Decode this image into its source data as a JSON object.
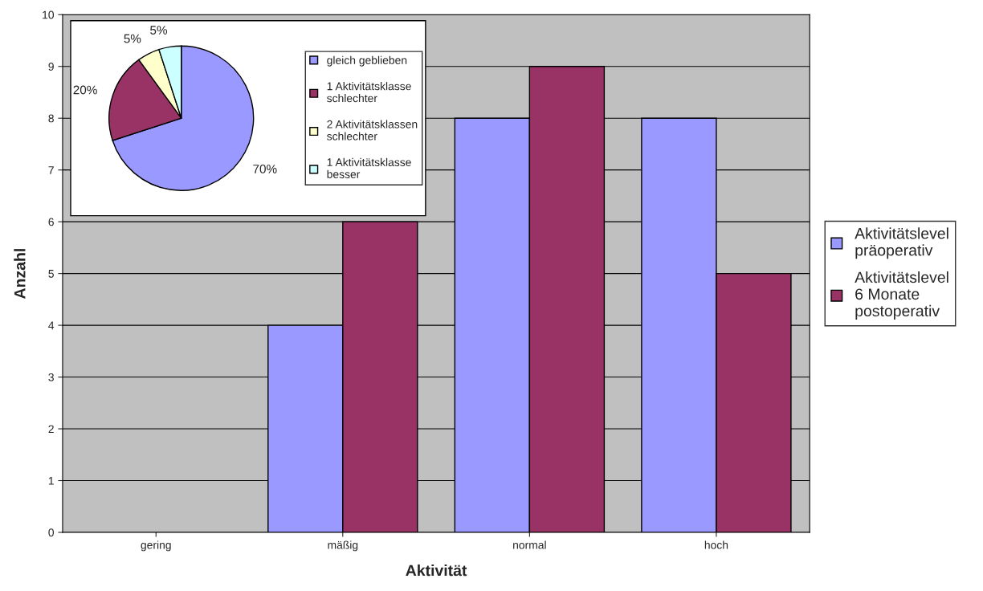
{
  "chart_data": [
    {
      "type": "bar",
      "xlabel": "Aktivität",
      "ylabel": "Anzahl",
      "categories": [
        "gering",
        "mäßig",
        "normal",
        "hoch"
      ],
      "series": [
        {
          "name": "Aktivitätslevel präoperativ",
          "color": "#9999ff",
          "values": [
            0,
            4,
            8,
            8
          ]
        },
        {
          "name": "Aktivitätslevel 6 Monate postoperativ",
          "color": "#993366",
          "values": [
            0,
            6,
            9,
            5
          ]
        }
      ],
      "ylim": [
        0,
        10
      ],
      "yticks": [
        0,
        1,
        2,
        3,
        4,
        5,
        6,
        7,
        8,
        9,
        10
      ],
      "grid": "y",
      "legend": "right"
    },
    {
      "type": "pie",
      "categories": [
        "gleich geblieben",
        "1 Aktivitätsklasse schlechter",
        "2 Aktivitätsklassen schlechter",
        "1 Aktivitätsklasse besser"
      ],
      "values": [
        70,
        20,
        5,
        5
      ],
      "colors": [
        "#9999ff",
        "#993366",
        "#ffffcc",
        "#ccffff"
      ],
      "value_labels": [
        "70%",
        "20%",
        "5%",
        "5%"
      ],
      "legend": "right"
    }
  ]
}
